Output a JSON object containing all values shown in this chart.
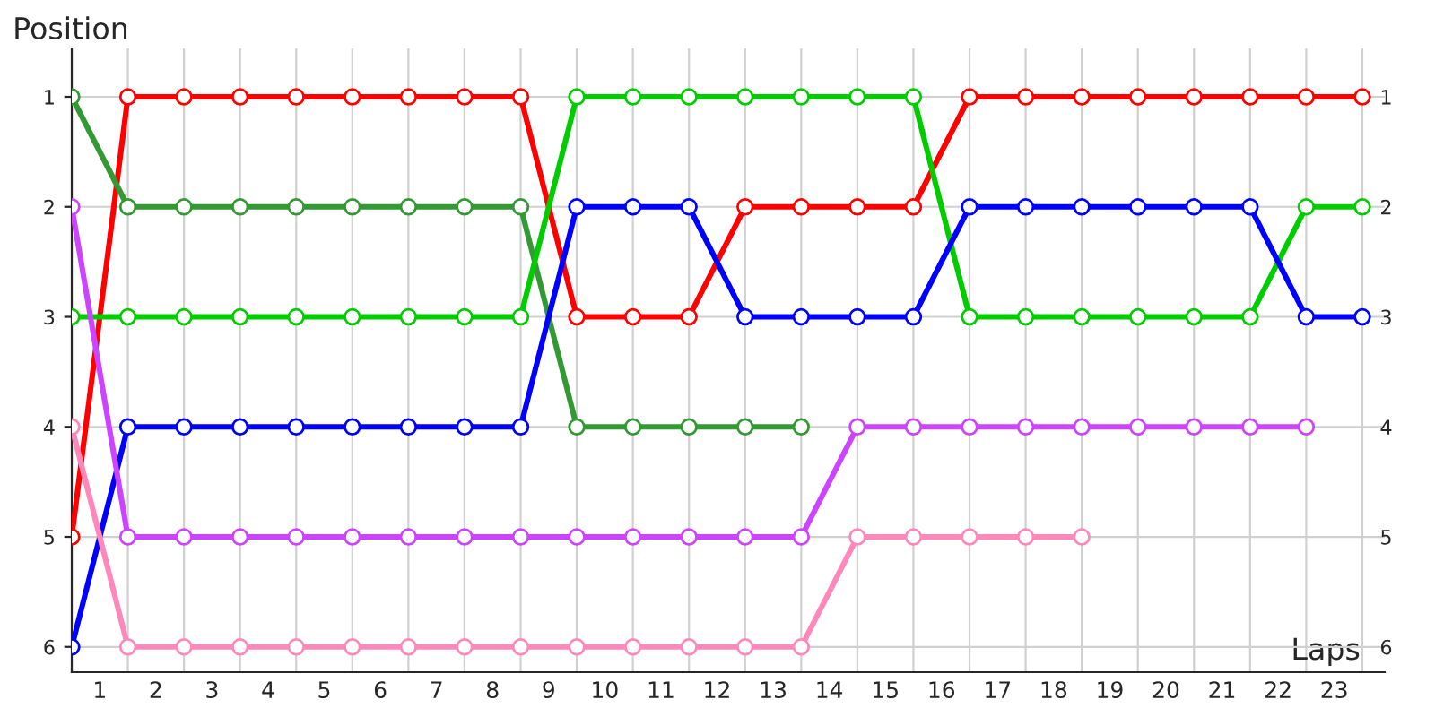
{
  "chart_data": {
    "type": "line",
    "xlabel": "Laps",
    "ylabel": "Position",
    "x": [
      0,
      1,
      2,
      3,
      4,
      5,
      6,
      7,
      8,
      9,
      10,
      11,
      12,
      13,
      14,
      15,
      16,
      17,
      18,
      19,
      20,
      21,
      22,
      23
    ],
    "series": [
      {
        "color": "#ff0000",
        "values": [
          5,
          1,
          1,
          1,
          1,
          1,
          1,
          1,
          1,
          3,
          3,
          3,
          2,
          2,
          2,
          2,
          1,
          1,
          1,
          1,
          1,
          1,
          1,
          1
        ]
      },
      {
        "color": "#339933",
        "values": [
          1,
          2,
          2,
          2,
          2,
          2,
          2,
          2,
          2,
          4,
          4,
          4,
          4,
          4,
          null,
          null,
          null,
          null,
          null,
          null,
          null,
          null,
          null,
          null
        ]
      },
      {
        "color": "#00cc00",
        "values": [
          3,
          3,
          3,
          3,
          3,
          3,
          3,
          3,
          3,
          1,
          1,
          1,
          1,
          1,
          1,
          1,
          3,
          3,
          3,
          3,
          3,
          3,
          2,
          2
        ]
      },
      {
        "color": "#0000ff",
        "values": [
          6,
          4,
          4,
          4,
          4,
          4,
          4,
          4,
          4,
          2,
          2,
          2,
          3,
          3,
          3,
          3,
          2,
          2,
          2,
          2,
          2,
          2,
          3,
          3
        ]
      },
      {
        "color": "#cc44ff",
        "values": [
          2,
          5,
          5,
          5,
          5,
          5,
          5,
          5,
          5,
          5,
          5,
          5,
          5,
          5,
          4,
          4,
          4,
          4,
          4,
          4,
          4,
          4,
          4,
          null
        ]
      },
      {
        "color": "#ff88bb",
        "values": [
          4,
          6,
          6,
          6,
          6,
          6,
          6,
          6,
          6,
          6,
          6,
          6,
          6,
          6,
          5,
          5,
          5,
          5,
          5,
          null,
          null,
          null,
          null,
          null
        ]
      }
    ],
    "xlim": [
      0,
      23.4
    ],
    "xticks": [
      {
        "value": 0.5,
        "label": "1"
      },
      {
        "value": 1.5,
        "label": "2"
      },
      {
        "value": 2.5,
        "label": "3"
      },
      {
        "value": 3.5,
        "label": "4"
      },
      {
        "value": 4.5,
        "label": "5"
      },
      {
        "value": 5.5,
        "label": "6"
      },
      {
        "value": 6.5,
        "label": "7"
      },
      {
        "value": 7.5,
        "label": "8"
      },
      {
        "value": 8.5,
        "label": "9"
      },
      {
        "value": 9.5,
        "label": "10"
      },
      {
        "value": 10.5,
        "label": "11"
      },
      {
        "value": 11.5,
        "label": "12"
      },
      {
        "value": 12.5,
        "label": "13"
      },
      {
        "value": 13.5,
        "label": "14"
      },
      {
        "value": 14.5,
        "label": "15"
      },
      {
        "value": 15.5,
        "label": "16"
      },
      {
        "value": 16.5,
        "label": "17"
      },
      {
        "value": 17.5,
        "label": "18"
      },
      {
        "value": 18.5,
        "label": "19"
      },
      {
        "value": 19.5,
        "label": "20"
      },
      {
        "value": 20.5,
        "label": "21"
      },
      {
        "value": 21.5,
        "label": "22"
      },
      {
        "value": 22.5,
        "label": "23"
      }
    ],
    "ylim": [
      6.23,
      0.56
    ],
    "yticks": [
      1,
      2,
      3,
      4,
      5,
      6
    ],
    "y2lim": [
      6.23,
      0.56
    ],
    "y2ticks": [
      1,
      2,
      3,
      4,
      5,
      6
    ],
    "grid": true,
    "marker": "circle",
    "line_style": "solid"
  }
}
